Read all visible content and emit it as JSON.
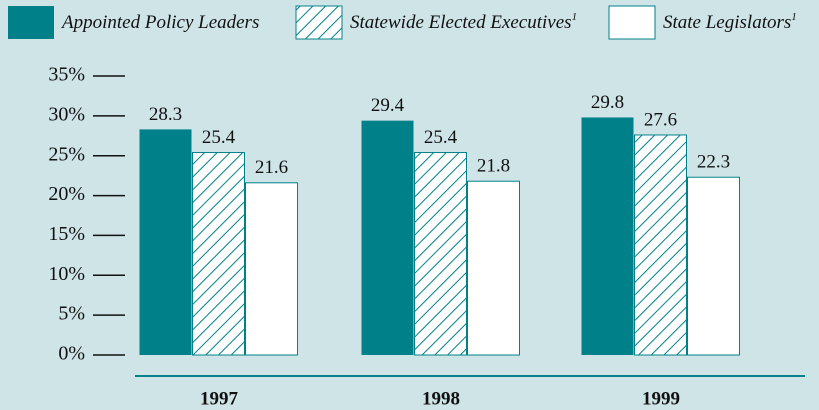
{
  "chart_data": {
    "type": "bar",
    "categories": [
      "1997",
      "1998",
      "1999"
    ],
    "series": [
      {
        "name": "Appointed Policy Leaders",
        "color": "#00818a",
        "style": "solid",
        "values": [
          28.3,
          29.4,
          29.8
        ]
      },
      {
        "name": "Statewide Elected Executives",
        "footnote": "1",
        "color": "#00818a",
        "style": "hatch",
        "values": [
          25.4,
          25.4,
          27.6
        ]
      },
      {
        "name": "State Legislators",
        "footnote": "1",
        "color": "#00818a",
        "style": "outline",
        "values": [
          21.6,
          21.8,
          22.3
        ]
      }
    ],
    "ylim": [
      0,
      35
    ],
    "yticks": [
      {
        "value": 0,
        "label": "0%"
      },
      {
        "value": 5,
        "label": "5%"
      },
      {
        "value": 10,
        "label": "10%"
      },
      {
        "value": 15,
        "label": "15%"
      },
      {
        "value": 20,
        "label": "20%"
      },
      {
        "value": 25,
        "label": "25%"
      },
      {
        "value": 30,
        "label": "30%"
      },
      {
        "value": 35,
        "label": "35%"
      }
    ],
    "legend": "top"
  }
}
